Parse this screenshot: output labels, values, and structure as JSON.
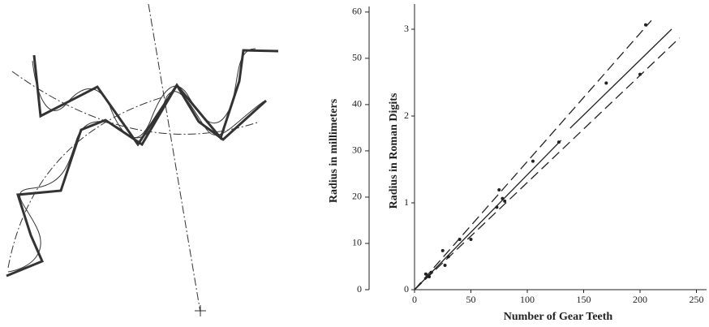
{
  "chart_data": {
    "type": "scatter",
    "xlabel": "Number of Gear Teeth",
    "ylabel": "Radius in Roman Digits",
    "y2label": "Radius in millimeters",
    "color": "#222",
    "x": [
      10,
      13,
      15,
      25,
      27,
      30,
      40,
      50,
      73,
      75,
      78,
      80,
      105,
      128,
      170,
      200,
      205
    ],
    "values": [
      0.18,
      0.15,
      0.2,
      0.45,
      0.28,
      0.38,
      0.58,
      0.58,
      0.95,
      1.15,
      1.05,
      1.02,
      1.48,
      1.7,
      2.38,
      2.48,
      3.05
    ],
    "lines": [
      {
        "style": "solid",
        "x": [
          0,
          130,
          134,
          138,
          228
        ],
        "y": [
          0,
          1.72,
          null,
          1.86,
          3.0
        ]
      },
      {
        "style": "dashed",
        "x": [
          0,
          210
        ],
        "y": [
          0,
          3.1
        ]
      },
      {
        "style": "dashed",
        "x": [
          0,
          235
        ],
        "y": [
          0,
          2.9
        ]
      }
    ],
    "xlim": [
      0,
      259
    ],
    "xticks": [
      0,
      50,
      100,
      150,
      200,
      250
    ],
    "ylim": [
      0,
      3.29
    ],
    "yticks": [
      0,
      1,
      2,
      3
    ],
    "y2lim": [
      0,
      61.2
    ],
    "y2ticks": [
      0,
      10,
      20,
      30,
      40,
      50,
      60
    ]
  }
}
